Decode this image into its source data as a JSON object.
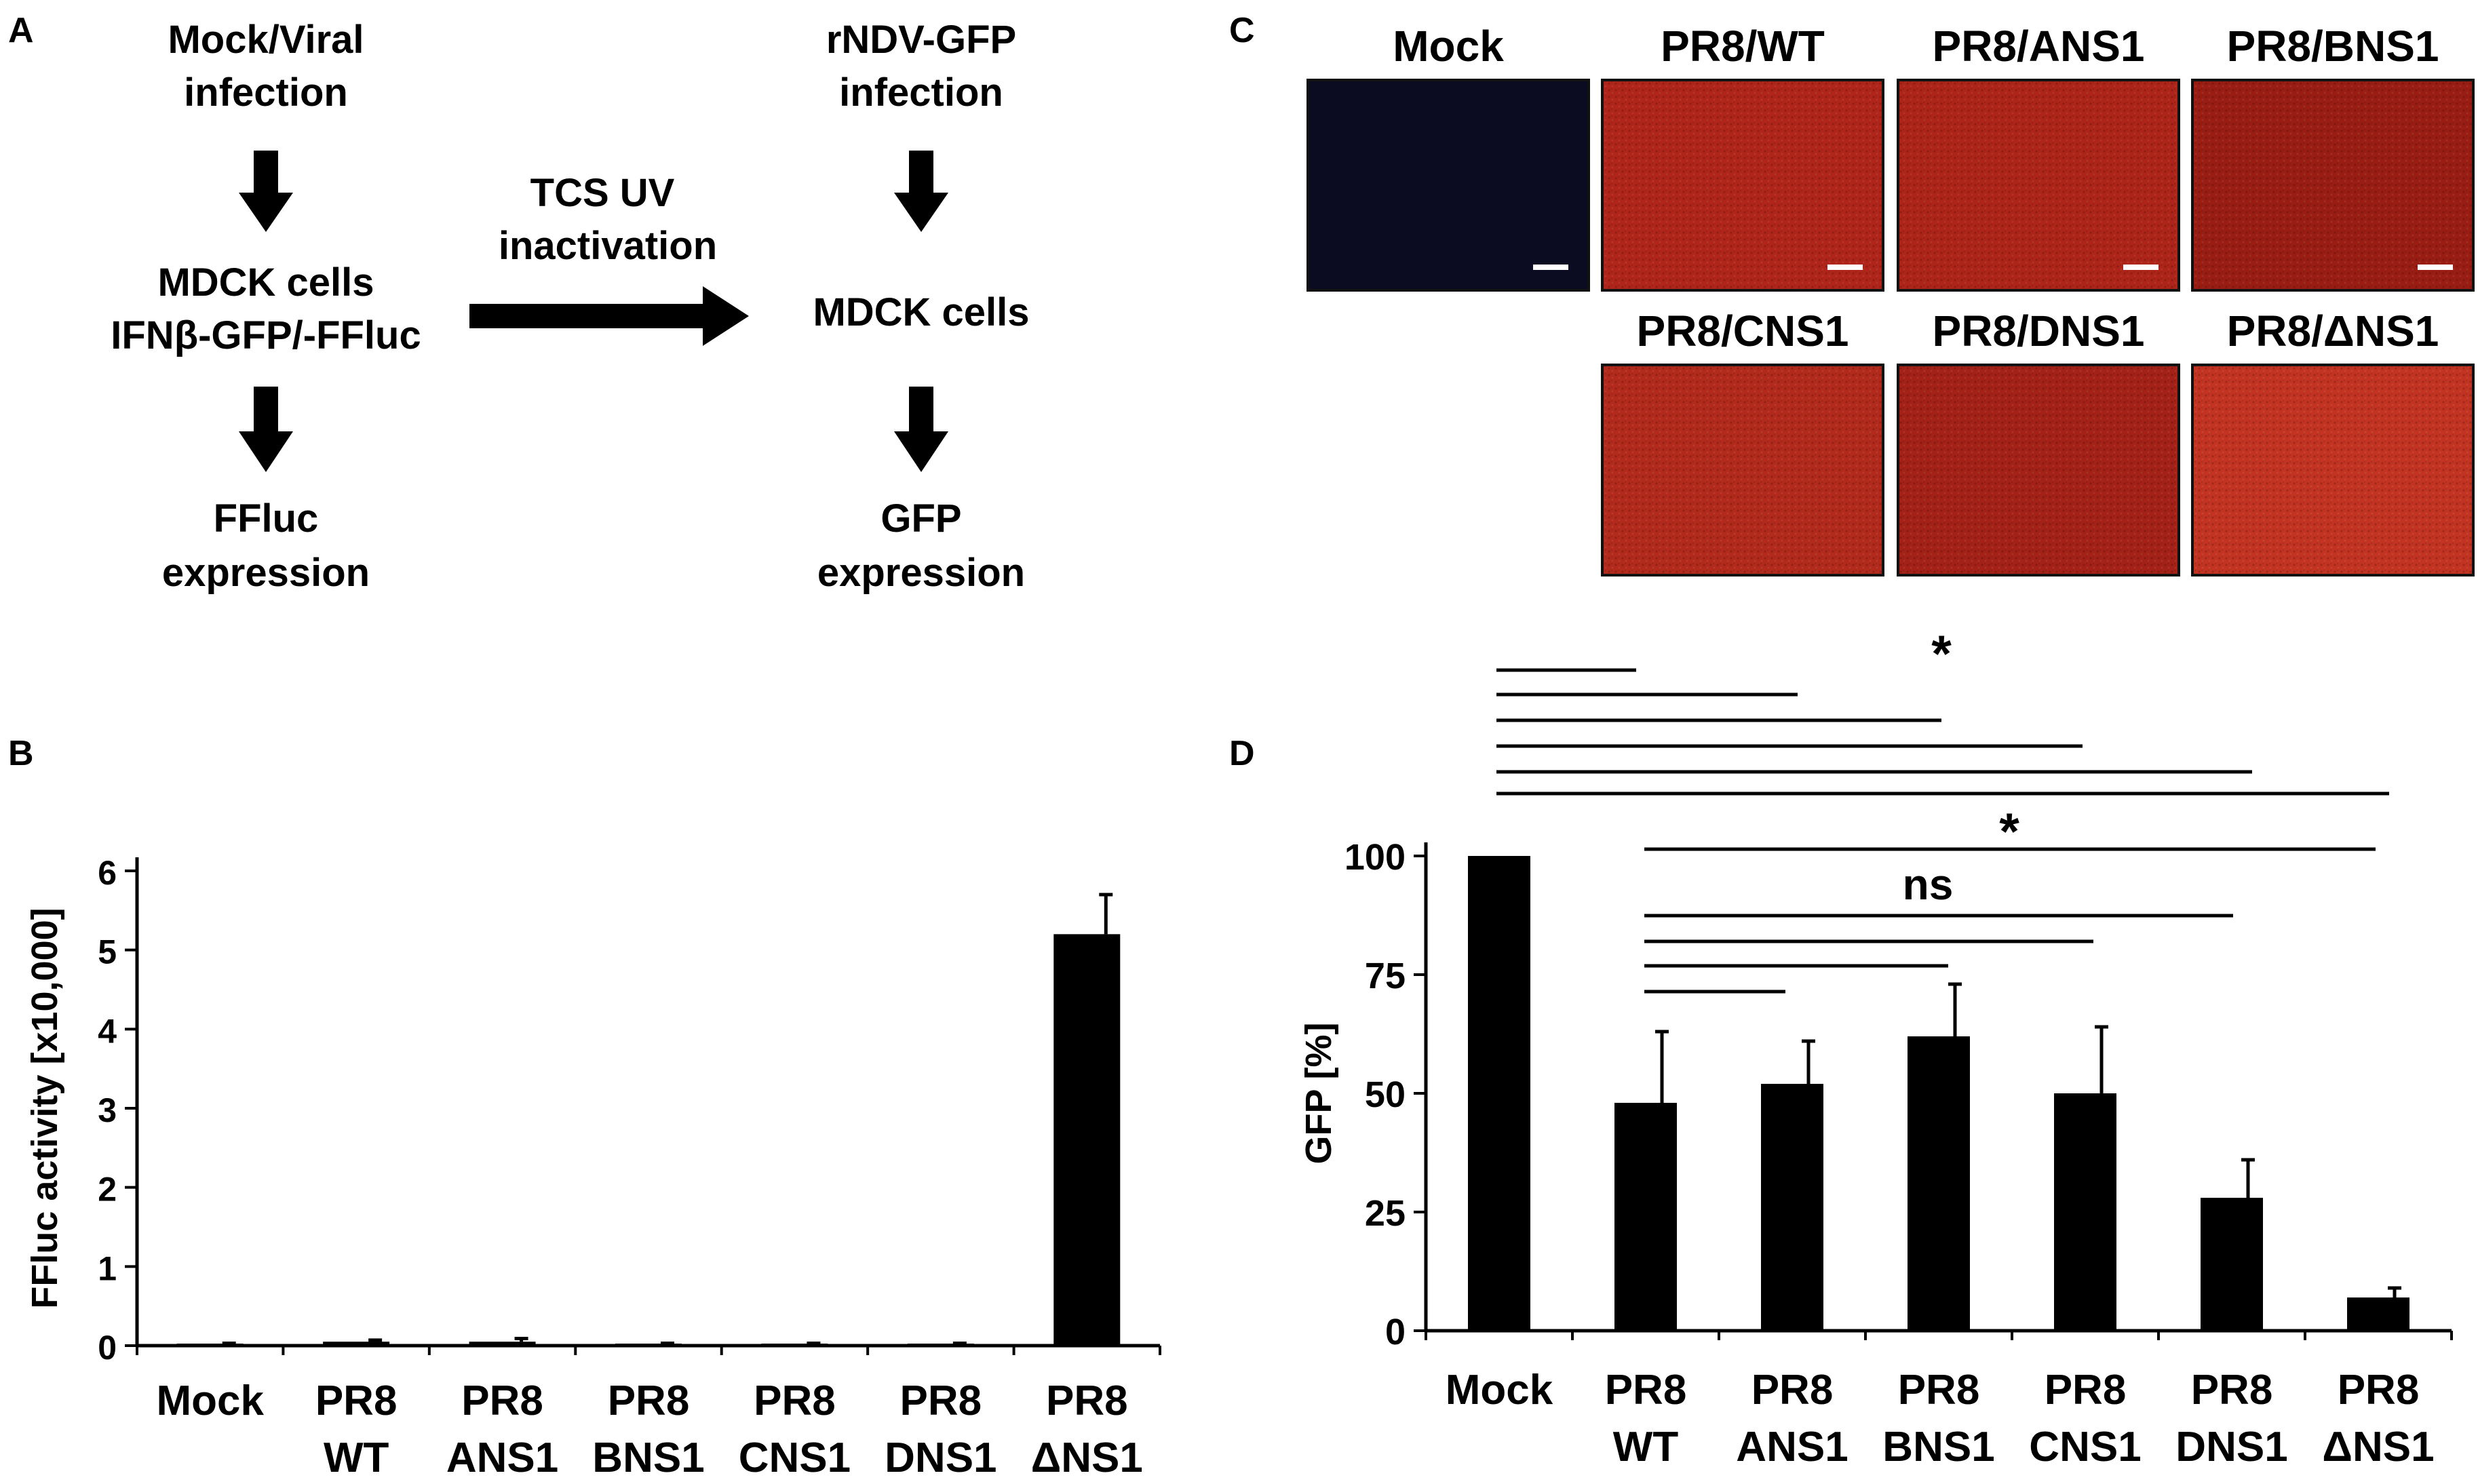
{
  "panel_labels": [
    "A",
    "B",
    "C",
    "D"
  ],
  "flowchart": {
    "left_steps": [
      [
        "Mock/Viral",
        "infection"
      ],
      [
        "MDCK cells",
        "IFNβ-GFP/-FFluc"
      ],
      [
        "FFluc",
        "expression"
      ]
    ],
    "middle_label": [
      "TCS UV",
      "inactivation"
    ],
    "right_steps": [
      [
        "rNDV-GFP",
        "infection"
      ],
      [
        "MDCK cells"
      ],
      [
        "GFP",
        "expression"
      ]
    ]
  },
  "micrographs": {
    "labels": [
      "Mock",
      "PR8/WT",
      "PR8/ANS1",
      "PR8/BNS1",
      "PR8/CNS1",
      "PR8/DNS1",
      "PR8/ΔNS1"
    ],
    "colors": [
      "#0b0b22",
      "#b0251a",
      "#ad2418",
      "#9a1d14",
      "#b22a1c",
      "#a42117",
      "#c23322"
    ]
  },
  "chart_data": [
    {
      "type": "bar",
      "panel": "B",
      "categories": [
        [
          "Mock"
        ],
        [
          "PR8",
          "WT"
        ],
        [
          "PR8",
          "ANS1"
        ],
        [
          "PR8",
          "BNS1"
        ],
        [
          "PR8",
          "CNS1"
        ],
        [
          "PR8",
          "DNS1"
        ],
        [
          "PR8",
          "ΔNS1"
        ]
      ],
      "values": [
        0.02,
        0.05,
        0.05,
        0.02,
        0.02,
        0.02,
        5.2
      ],
      "errors": [
        0.01,
        0.02,
        0.04,
        0.01,
        0.01,
        0.01,
        0.5
      ],
      "ylabel": "FFluc activity [x10,000]",
      "yticks": [
        0,
        1,
        2,
        3,
        4,
        5,
        6
      ],
      "ylim": [
        0,
        6
      ]
    },
    {
      "type": "bar",
      "panel": "D",
      "categories": [
        [
          "Mock"
        ],
        [
          "PR8",
          "WT"
        ],
        [
          "PR8",
          "ANS1"
        ],
        [
          "PR8",
          "BNS1"
        ],
        [
          "PR8",
          "CNS1"
        ],
        [
          "PR8",
          "DNS1"
        ],
        [
          "PR8",
          "ΔNS1"
        ]
      ],
      "values": [
        100,
        48,
        52,
        62,
        50,
        28,
        7
      ],
      "errors": [
        0,
        15,
        9,
        11,
        14,
        8,
        2
      ],
      "ylabel": "GFP [%]",
      "yticks": [
        0,
        25,
        50,
        75,
        100
      ],
      "ylim": [
        0,
        100
      ],
      "annotations": {
        "top_label": "*",
        "mid_label": "*",
        "ns_label": "ns"
      }
    }
  ]
}
